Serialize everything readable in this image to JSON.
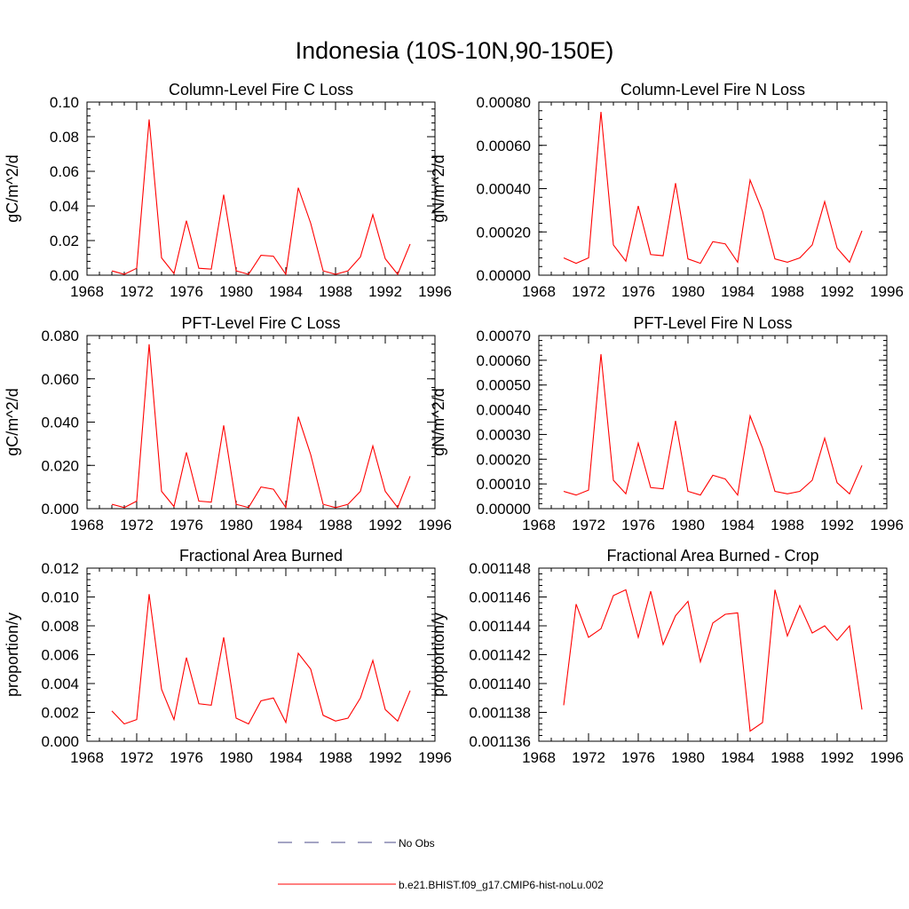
{
  "figure": {
    "title": "Indonesia (10S-10N,90-150E)",
    "legend": {
      "placement": "bottom-center",
      "entries": [
        {
          "label": "No Obs",
          "color": "#4a4a8a",
          "dash": true
        },
        {
          "label": "b.e21.BHIST.f09_g17.CMIP6-hist-noLu.002",
          "color": "#ff0000",
          "dash": false
        }
      ]
    }
  },
  "chart_data": [
    {
      "type": "line",
      "title": "Column-Level Fire C Loss",
      "ylabel": "gC/m^2/d",
      "xlim": [
        1968,
        1996
      ],
      "xticks": [
        "1968",
        "1972",
        "1976",
        "1980",
        "1984",
        "1988",
        "1992",
        "1996"
      ],
      "ylim": [
        0,
        0.1
      ],
      "yticks": [
        "0.00",
        "0.02",
        "0.04",
        "0.06",
        "0.08",
        "0.10"
      ],
      "x": [
        1970,
        1971,
        1972,
        1973,
        1974,
        1975,
        1976,
        1977,
        1978,
        1979,
        1980,
        1981,
        1982,
        1983,
        1984,
        1985,
        1986,
        1987,
        1988,
        1989,
        1990,
        1991,
        1992,
        1993,
        1994
      ],
      "series": [
        {
          "values": [
            0.0025,
            0.0005,
            0.004,
            0.09,
            0.01,
            0.001,
            0.0315,
            0.004,
            0.0035,
            0.0465,
            0.0025,
            0.0005,
            0.0115,
            0.011,
            0.0005,
            0.0505,
            0.03,
            0.0025,
            0.0005,
            0.0025,
            0.0105,
            0.035,
            0.0095,
            0.0005,
            0.018
          ],
          "color": "#ff0000"
        }
      ]
    },
    {
      "type": "line",
      "title": "Column-Level Fire N Loss",
      "ylabel": "gN/m^2/d",
      "xlim": [
        1968,
        1996
      ],
      "xticks": [
        "1968",
        "1972",
        "1976",
        "1980",
        "1984",
        "1988",
        "1992",
        "1996"
      ],
      "ylim": [
        0,
        0.0008
      ],
      "yticks": [
        "0.00000",
        "0.00020",
        "0.00040",
        "0.00060",
        "0.00080"
      ],
      "x": [
        1970,
        1971,
        1972,
        1973,
        1974,
        1975,
        1976,
        1977,
        1978,
        1979,
        1980,
        1981,
        1982,
        1983,
        1984,
        1985,
        1986,
        1987,
        1988,
        1989,
        1990,
        1991,
        1992,
        1993,
        1994
      ],
      "series": [
        {
          "values": [
            8e-05,
            5.5e-05,
            8e-05,
            0.000755,
            0.00014,
            6.5e-05,
            0.00032,
            9.5e-05,
            9e-05,
            0.000425,
            7.5e-05,
            5.5e-05,
            0.000155,
            0.000145,
            6e-05,
            0.00044,
            0.000295,
            7.5e-05,
            6e-05,
            8e-05,
            0.00014,
            0.00034,
            0.000125,
            6e-05,
            0.000205
          ],
          "color": "#ff0000"
        }
      ]
    },
    {
      "type": "line",
      "title": "PFT-Level Fire C Loss",
      "ylabel": "gC/m^2/d",
      "xlim": [
        1968,
        1996
      ],
      "xticks": [
        "1968",
        "1972",
        "1976",
        "1980",
        "1984",
        "1988",
        "1992",
        "1996"
      ],
      "ylim": [
        0,
        0.08
      ],
      "yticks": [
        "0.000",
        "0.020",
        "0.040",
        "0.060",
        "0.080"
      ],
      "x": [
        1970,
        1971,
        1972,
        1973,
        1974,
        1975,
        1976,
        1977,
        1978,
        1979,
        1980,
        1981,
        1982,
        1983,
        1984,
        1985,
        1986,
        1987,
        1988,
        1989,
        1990,
        1991,
        1992,
        1993,
        1994
      ],
      "series": [
        {
          "values": [
            0.002,
            0.0005,
            0.0035,
            0.076,
            0.008,
            0.001,
            0.026,
            0.0035,
            0.003,
            0.0385,
            0.002,
            0.0005,
            0.01,
            0.009,
            0.0005,
            0.0425,
            0.025,
            0.002,
            0.0005,
            0.002,
            0.008,
            0.029,
            0.008,
            0.0005,
            0.015
          ],
          "color": "#ff0000"
        }
      ]
    },
    {
      "type": "line",
      "title": "PFT-Level Fire N Loss",
      "ylabel": "gN/m^2/d",
      "xlim": [
        1968,
        1996
      ],
      "xticks": [
        "1968",
        "1972",
        "1976",
        "1980",
        "1984",
        "1988",
        "1992",
        "1996"
      ],
      "ylim": [
        0,
        0.0007
      ],
      "yticks": [
        "0.00000",
        "0.00010",
        "0.00020",
        "0.00030",
        "0.00040",
        "0.00050",
        "0.00060",
        "0.00070"
      ],
      "x": [
        1970,
        1971,
        1972,
        1973,
        1974,
        1975,
        1976,
        1977,
        1978,
        1979,
        1980,
        1981,
        1982,
        1983,
        1984,
        1985,
        1986,
        1987,
        1988,
        1989,
        1990,
        1991,
        1992,
        1993,
        1994
      ],
      "series": [
        {
          "values": [
            7e-05,
            5.5e-05,
            7.5e-05,
            0.000625,
            0.000115,
            6e-05,
            0.000265,
            8.5e-05,
            8e-05,
            0.000355,
            7e-05,
            5.5e-05,
            0.000135,
            0.00012,
            5.5e-05,
            0.000375,
            0.000245,
            7e-05,
            6e-05,
            7e-05,
            0.000115,
            0.000285,
            0.000105,
            6e-05,
            0.000175
          ],
          "color": "#ff0000"
        }
      ]
    },
    {
      "type": "line",
      "title": "Fractional Area Burned",
      "ylabel": "proportion/y",
      "xlim": [
        1968,
        1996
      ],
      "xticks": [
        "1968",
        "1972",
        "1976",
        "1980",
        "1984",
        "1988",
        "1992",
        "1996"
      ],
      "ylim": [
        0,
        0.012
      ],
      "yticks": [
        "0.000",
        "0.002",
        "0.004",
        "0.006",
        "0.008",
        "0.010",
        "0.012"
      ],
      "x": [
        1970,
        1971,
        1972,
        1973,
        1974,
        1975,
        1976,
        1977,
        1978,
        1979,
        1980,
        1981,
        1982,
        1983,
        1984,
        1985,
        1986,
        1987,
        1988,
        1989,
        1990,
        1991,
        1992,
        1993,
        1994
      ],
      "series": [
        {
          "values": [
            0.0021,
            0.0012,
            0.0015,
            0.0102,
            0.0036,
            0.0015,
            0.0058,
            0.0026,
            0.0025,
            0.0072,
            0.0016,
            0.0012,
            0.0028,
            0.003,
            0.0013,
            0.0061,
            0.005,
            0.0018,
            0.0014,
            0.0016,
            0.003,
            0.0056,
            0.0022,
            0.0014,
            0.0035
          ],
          "color": "#ff0000"
        }
      ]
    },
    {
      "type": "line",
      "title": "Fractional Area Burned - Crop",
      "ylabel": "proportion/y",
      "xlim": [
        1968,
        1996
      ],
      "xticks": [
        "1968",
        "1972",
        "1976",
        "1980",
        "1984",
        "1988",
        "1992",
        "1996"
      ],
      "ylim": [
        0.001136,
        0.001148
      ],
      "yticks": [
        "0.001136",
        "0.001138",
        "0.001140",
        "0.001142",
        "0.001144",
        "0.001146",
        "0.001148"
      ],
      "x": [
        1970,
        1971,
        1972,
        1973,
        1974,
        1975,
        1976,
        1977,
        1978,
        1979,
        1980,
        1981,
        1982,
        1983,
        1984,
        1985,
        1986,
        1987,
        1988,
        1989,
        1990,
        1991,
        1992,
        1993,
        1994
      ],
      "series": [
        {
          "values": [
            0.0011385,
            0.0011455,
            0.0011432,
            0.0011438,
            0.0011461,
            0.0011465,
            0.0011432,
            0.0011464,
            0.0011427,
            0.0011447,
            0.0011457,
            0.0011415,
            0.0011442,
            0.0011448,
            0.0011449,
            0.0011367,
            0.0011373,
            0.0011465,
            0.0011433,
            0.0011454,
            0.0011435,
            0.001144,
            0.001143,
            0.001144,
            0.0011382
          ],
          "color": "#ff0000"
        }
      ]
    }
  ]
}
